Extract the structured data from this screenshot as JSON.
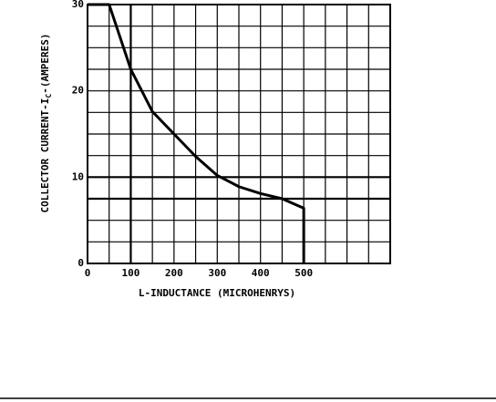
{
  "chart_data": {
    "type": "line",
    "xlabel": "L-INDUCTANCE (MICROHENRYS)",
    "ylabel": [
      "COLLECTOR CURRENT-I",
      "C",
      "-(AMPERES)"
    ],
    "xlim": [
      0,
      700
    ],
    "ylim": [
      0,
      30
    ],
    "xticks": [
      0,
      100,
      200,
      300,
      400,
      500
    ],
    "yticks": [
      0,
      10,
      20,
      30
    ],
    "xgrid": [
      0,
      50,
      100,
      150,
      200,
      250,
      300,
      350,
      400,
      450,
      500,
      550,
      600,
      650,
      700
    ],
    "ygrid": [
      0,
      2.5,
      5,
      7.5,
      10,
      12.5,
      15,
      17.5,
      20,
      22.5,
      25,
      27.5,
      30
    ],
    "hlines": [
      10,
      7.5
    ],
    "vlines": [
      100
    ],
    "grid": true,
    "series": [
      {
        "color": "#000000",
        "x": [
          0,
          50,
          100,
          150,
          200,
          250,
          300,
          350,
          400,
          450,
          500,
          500
        ],
        "values": [
          30,
          30,
          22.5,
          17.6,
          15,
          12.4,
          10.2,
          8.9,
          8.1,
          7.5,
          6.4,
          0
        ]
      }
    ]
  }
}
